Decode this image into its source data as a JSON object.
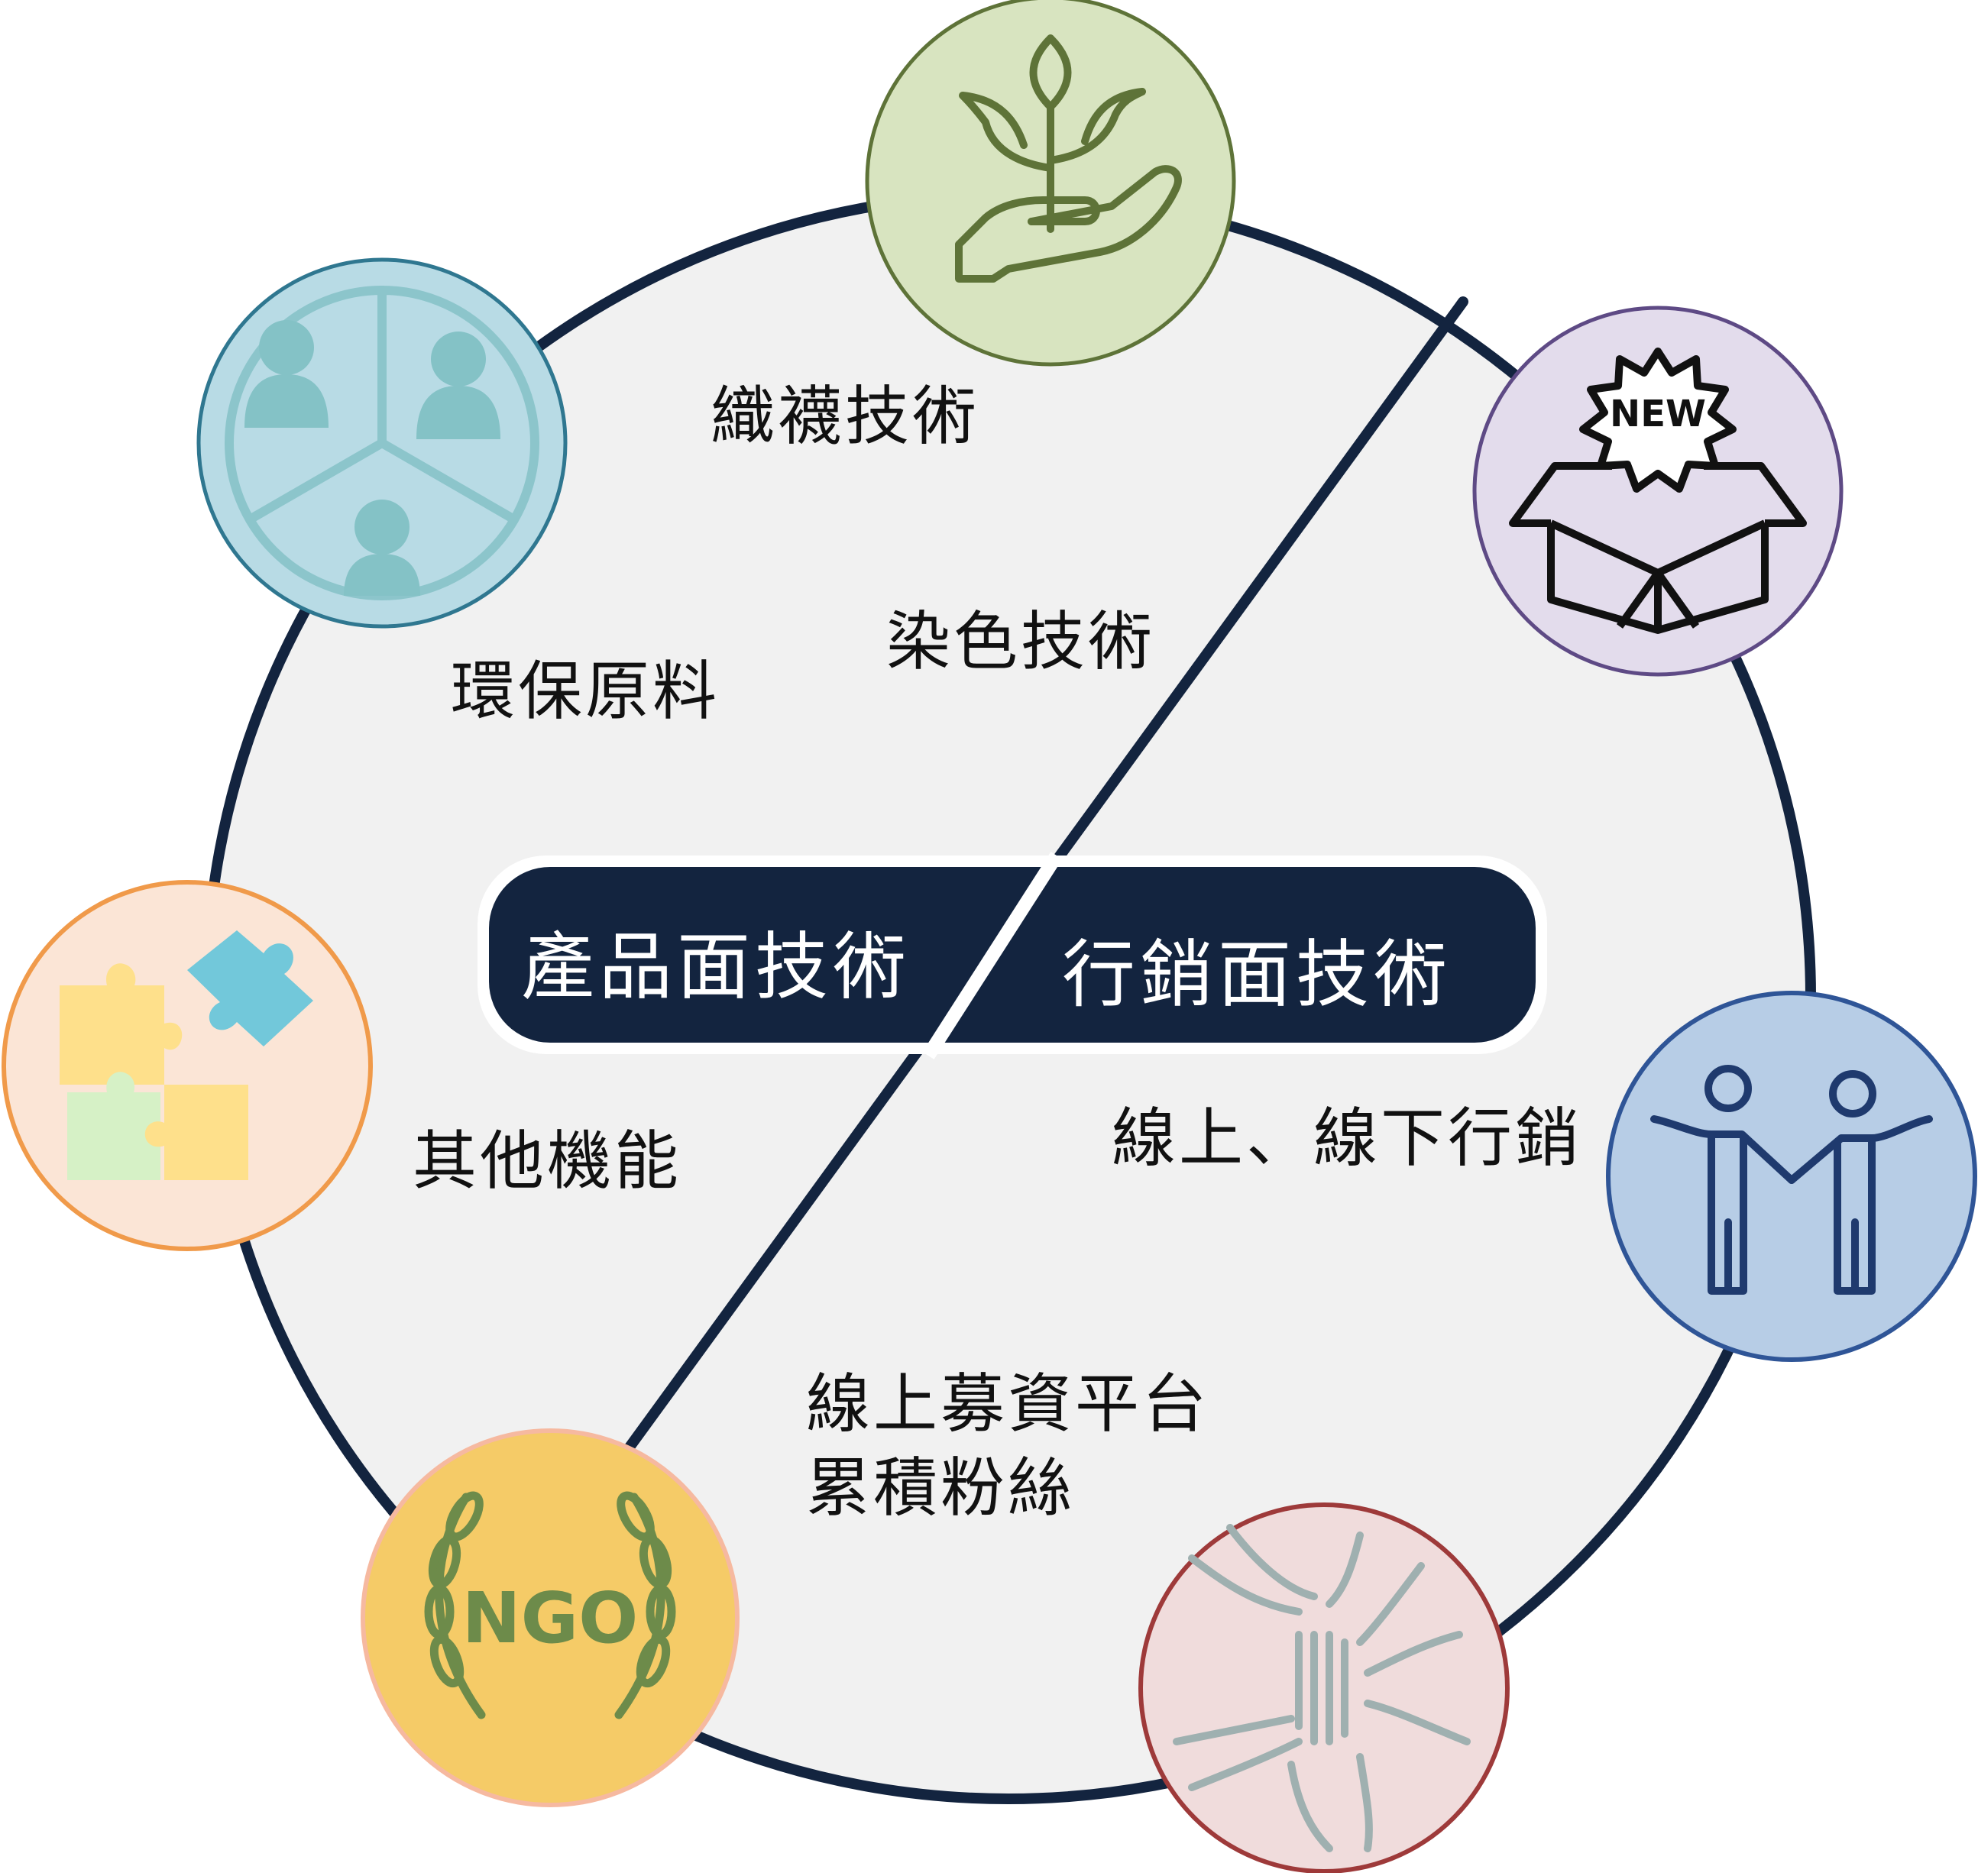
{
  "center": {
    "left_label": "產品面技術",
    "right_label": "行銷面技術",
    "fill": "#13243f"
  },
  "labels": {
    "weaving": "織襪技術",
    "dyeing": "染色技術",
    "eco_material": "環保原料",
    "other_function": "其他機能",
    "marketing_channels": "線上、線下行銷",
    "crowdfunding_line1": "線上募資平台",
    "crowdfunding_line2": "累積粉絲"
  },
  "icons": {
    "top": {
      "name": "plant-in-hand-icon",
      "fill": "#d8e4c0",
      "stroke": "#5e7338"
    },
    "top_left": {
      "name": "group-segments-icon",
      "fill": "#b8dbe5",
      "stroke": "#2f7790"
    },
    "top_right": {
      "name": "new-product-box-icon",
      "fill": "#e3dcec",
      "stroke": "#5e4a85",
      "badge_text": "NEW"
    },
    "left": {
      "name": "puzzle-pieces-icon",
      "fill": "#fbe5d6",
      "stroke": "#f09a4a"
    },
    "right": {
      "name": "people-holding-hands-icon",
      "fill": "#b7cde6",
      "stroke": "#2f5597"
    },
    "bottom_left": {
      "name": "ngo-laurel-icon",
      "fill": "#f5cb67",
      "stroke": "#f6b9a0",
      "badge_text": "NGO"
    },
    "bottom_right": {
      "name": "stacked-hands-icon",
      "fill": "#f0dcdc",
      "stroke": "#9e3a3a"
    }
  },
  "colors": {
    "ring": "#13243f",
    "disc": "#f1f1f1",
    "text": "#111111"
  }
}
